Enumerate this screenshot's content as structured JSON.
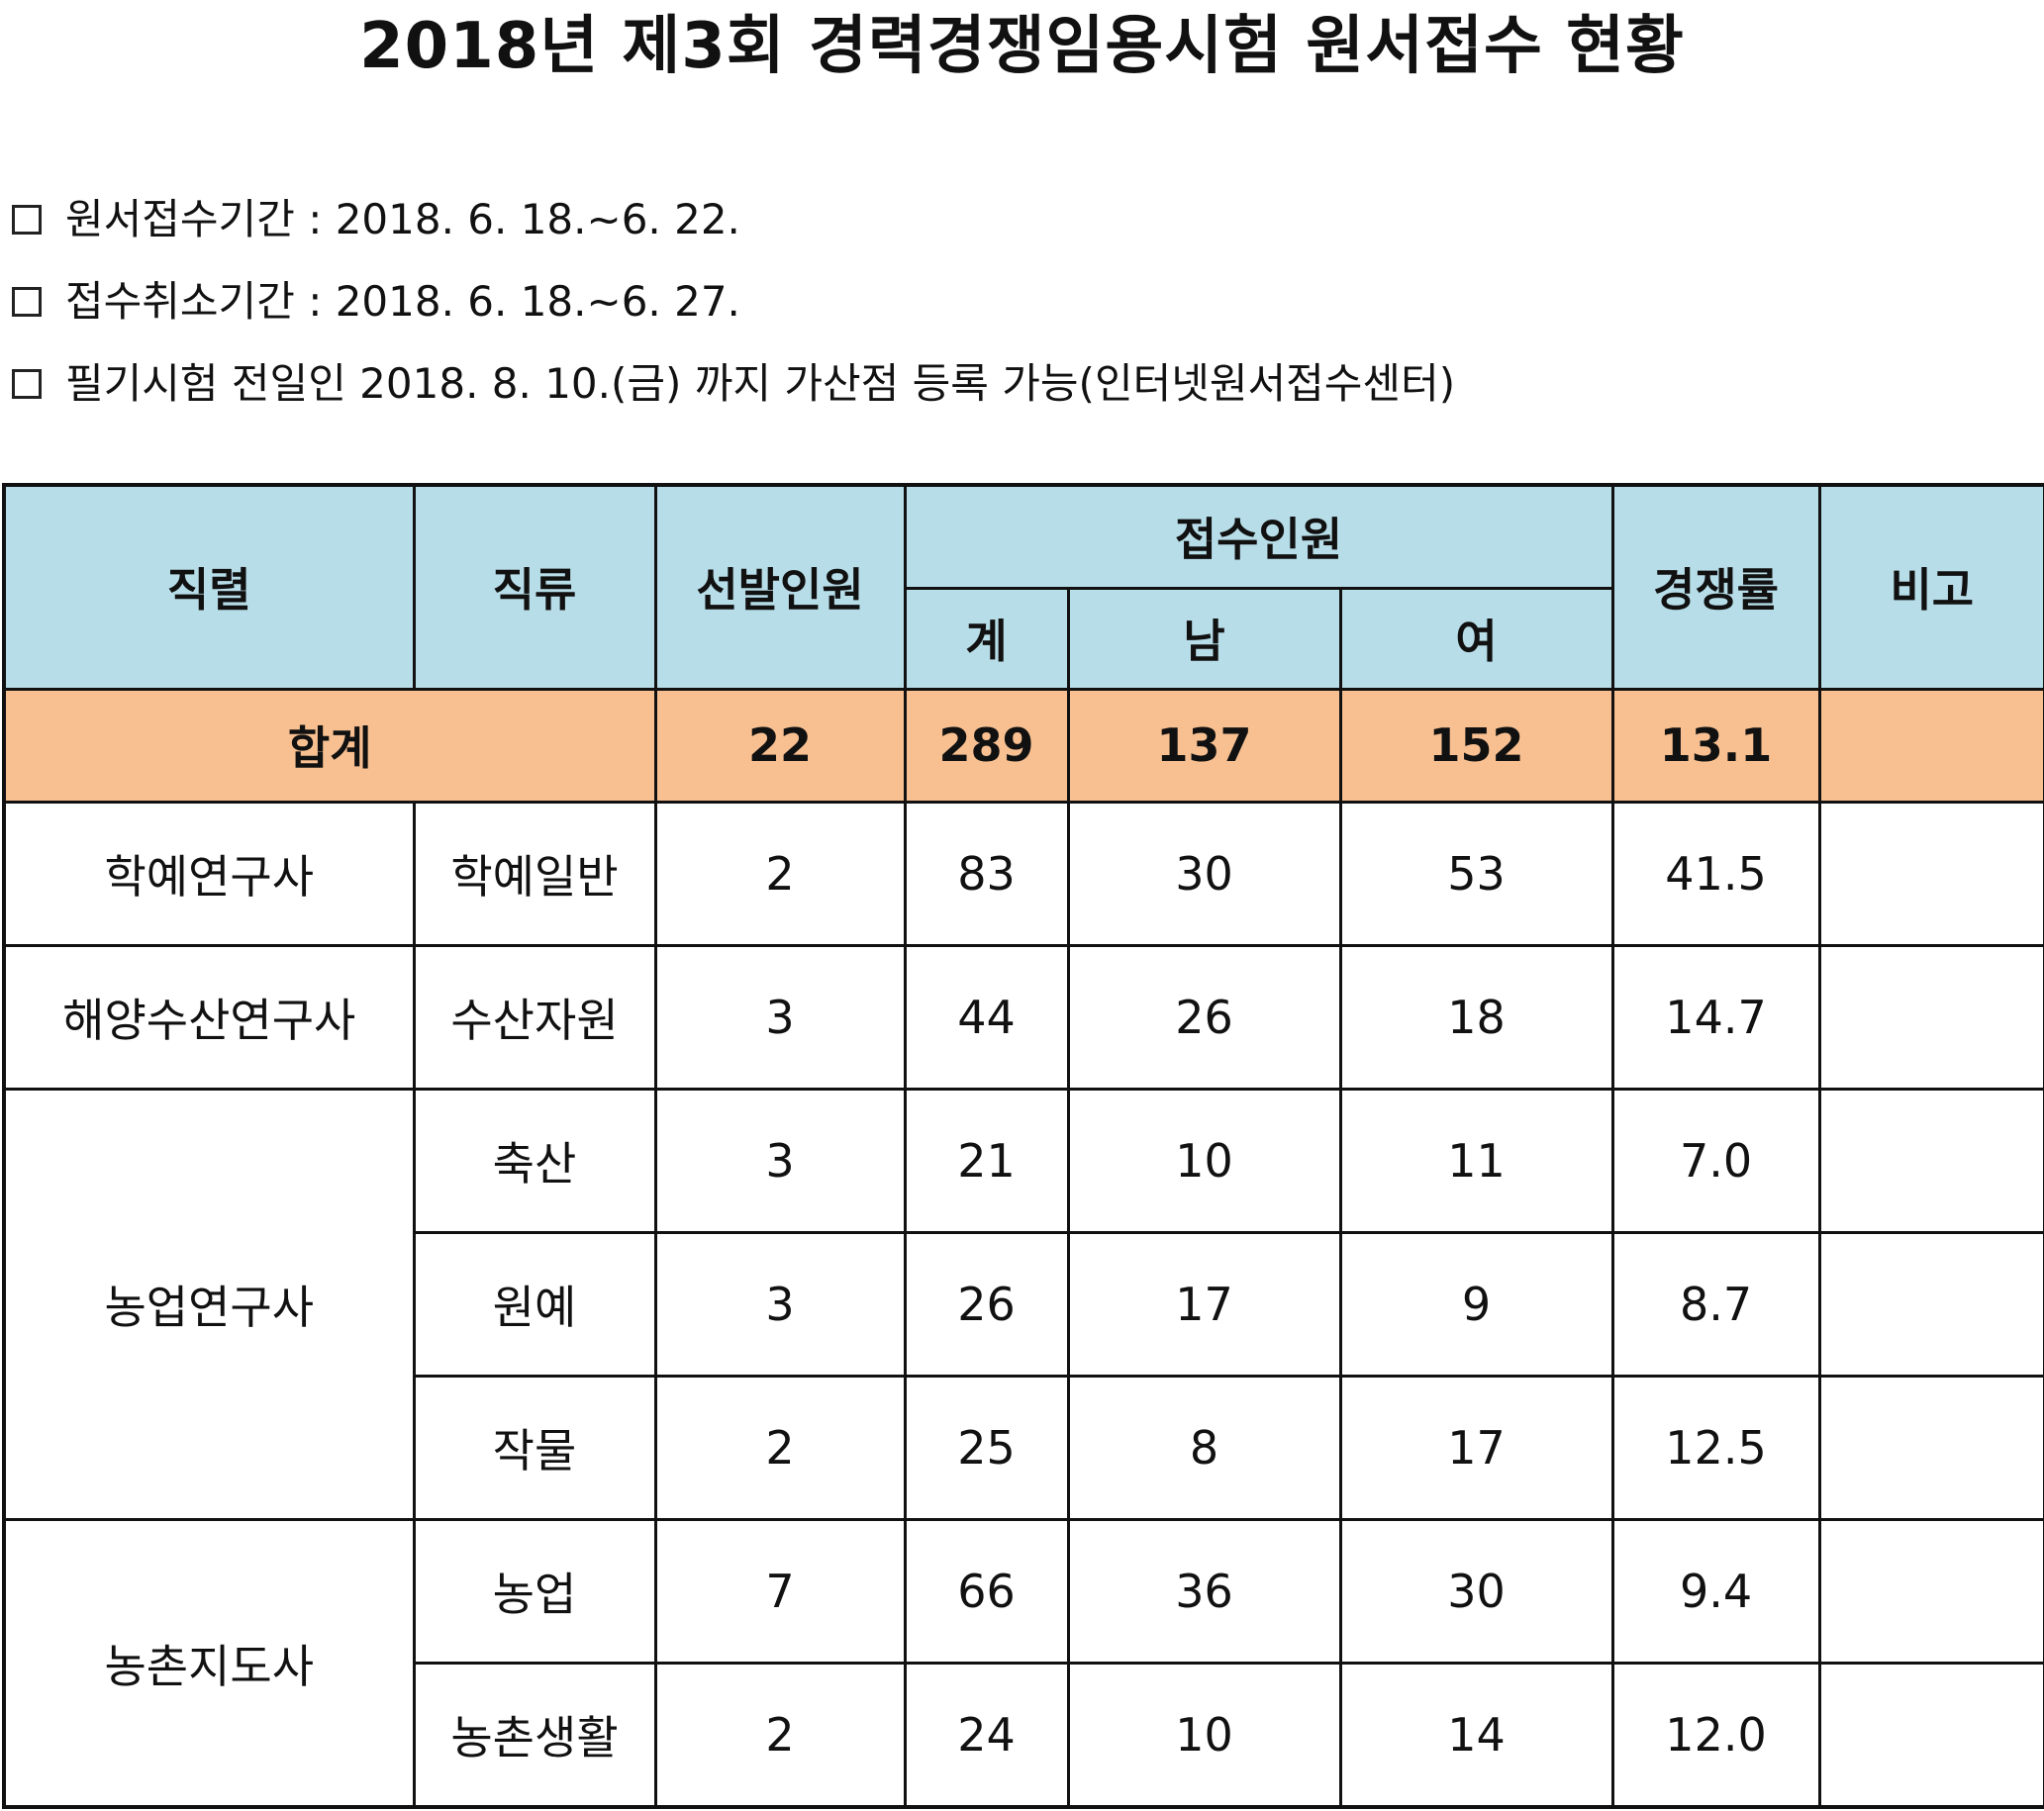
{
  "title": "2018년 제3회 경력경쟁임용시험 원서접수 현황",
  "notes": {
    "application_period": "원서접수기간 : 2018. 6. 18.~6. 22.",
    "cancellation_period": "접수취소기간 : 2018. 6. 18.~6. 27.",
    "bonus_points": "필기시험 전일인 2018. 8. 10.(금) 까지 가산점 등록 가능(인터넷원서접수센터)"
  },
  "table": {
    "headers": {
      "series": "직렬",
      "category": "직류",
      "selection": "선발인원",
      "applicants": "접수인원",
      "total": "계",
      "male": "남",
      "female": "여",
      "competition": "경쟁률",
      "remarks": "비고"
    },
    "totals": {
      "label": "합계",
      "selection": "22",
      "total": "289",
      "male": "137",
      "female": "152",
      "competition": "13.1",
      "remarks": ""
    },
    "groups": [
      {
        "series": "학예연구사"
      },
      {
        "series": "해양수산연구사"
      },
      {
        "series": "농업연구사"
      },
      {
        "series": "농촌지도사"
      }
    ],
    "rows": [
      {
        "category": "학예일반",
        "selection": "2",
        "total": "83",
        "male": "30",
        "female": "53",
        "competition": "41.5",
        "remarks": ""
      },
      {
        "category": "수산자원",
        "selection": "3",
        "total": "44",
        "male": "26",
        "female": "18",
        "competition": "14.7",
        "remarks": ""
      },
      {
        "category": "축산",
        "selection": "3",
        "total": "21",
        "male": "10",
        "female": "11",
        "competition": "7.0",
        "remarks": ""
      },
      {
        "category": "원예",
        "selection": "3",
        "total": "26",
        "male": "17",
        "female": "9",
        "competition": "8.7",
        "remarks": ""
      },
      {
        "category": "작물",
        "selection": "2",
        "total": "25",
        "male": "8",
        "female": "17",
        "competition": "12.5",
        "remarks": ""
      },
      {
        "category": "농업",
        "selection": "7",
        "total": "66",
        "male": "36",
        "female": "30",
        "competition": "9.4",
        "remarks": ""
      },
      {
        "category": "농촌생활",
        "selection": "2",
        "total": "24",
        "male": "10",
        "female": "14",
        "competition": "12.0",
        "remarks": ""
      }
    ]
  },
  "colors": {
    "header_bg": "#b7dde8",
    "total_row_bg": "#f8c091",
    "border": "#111111"
  }
}
